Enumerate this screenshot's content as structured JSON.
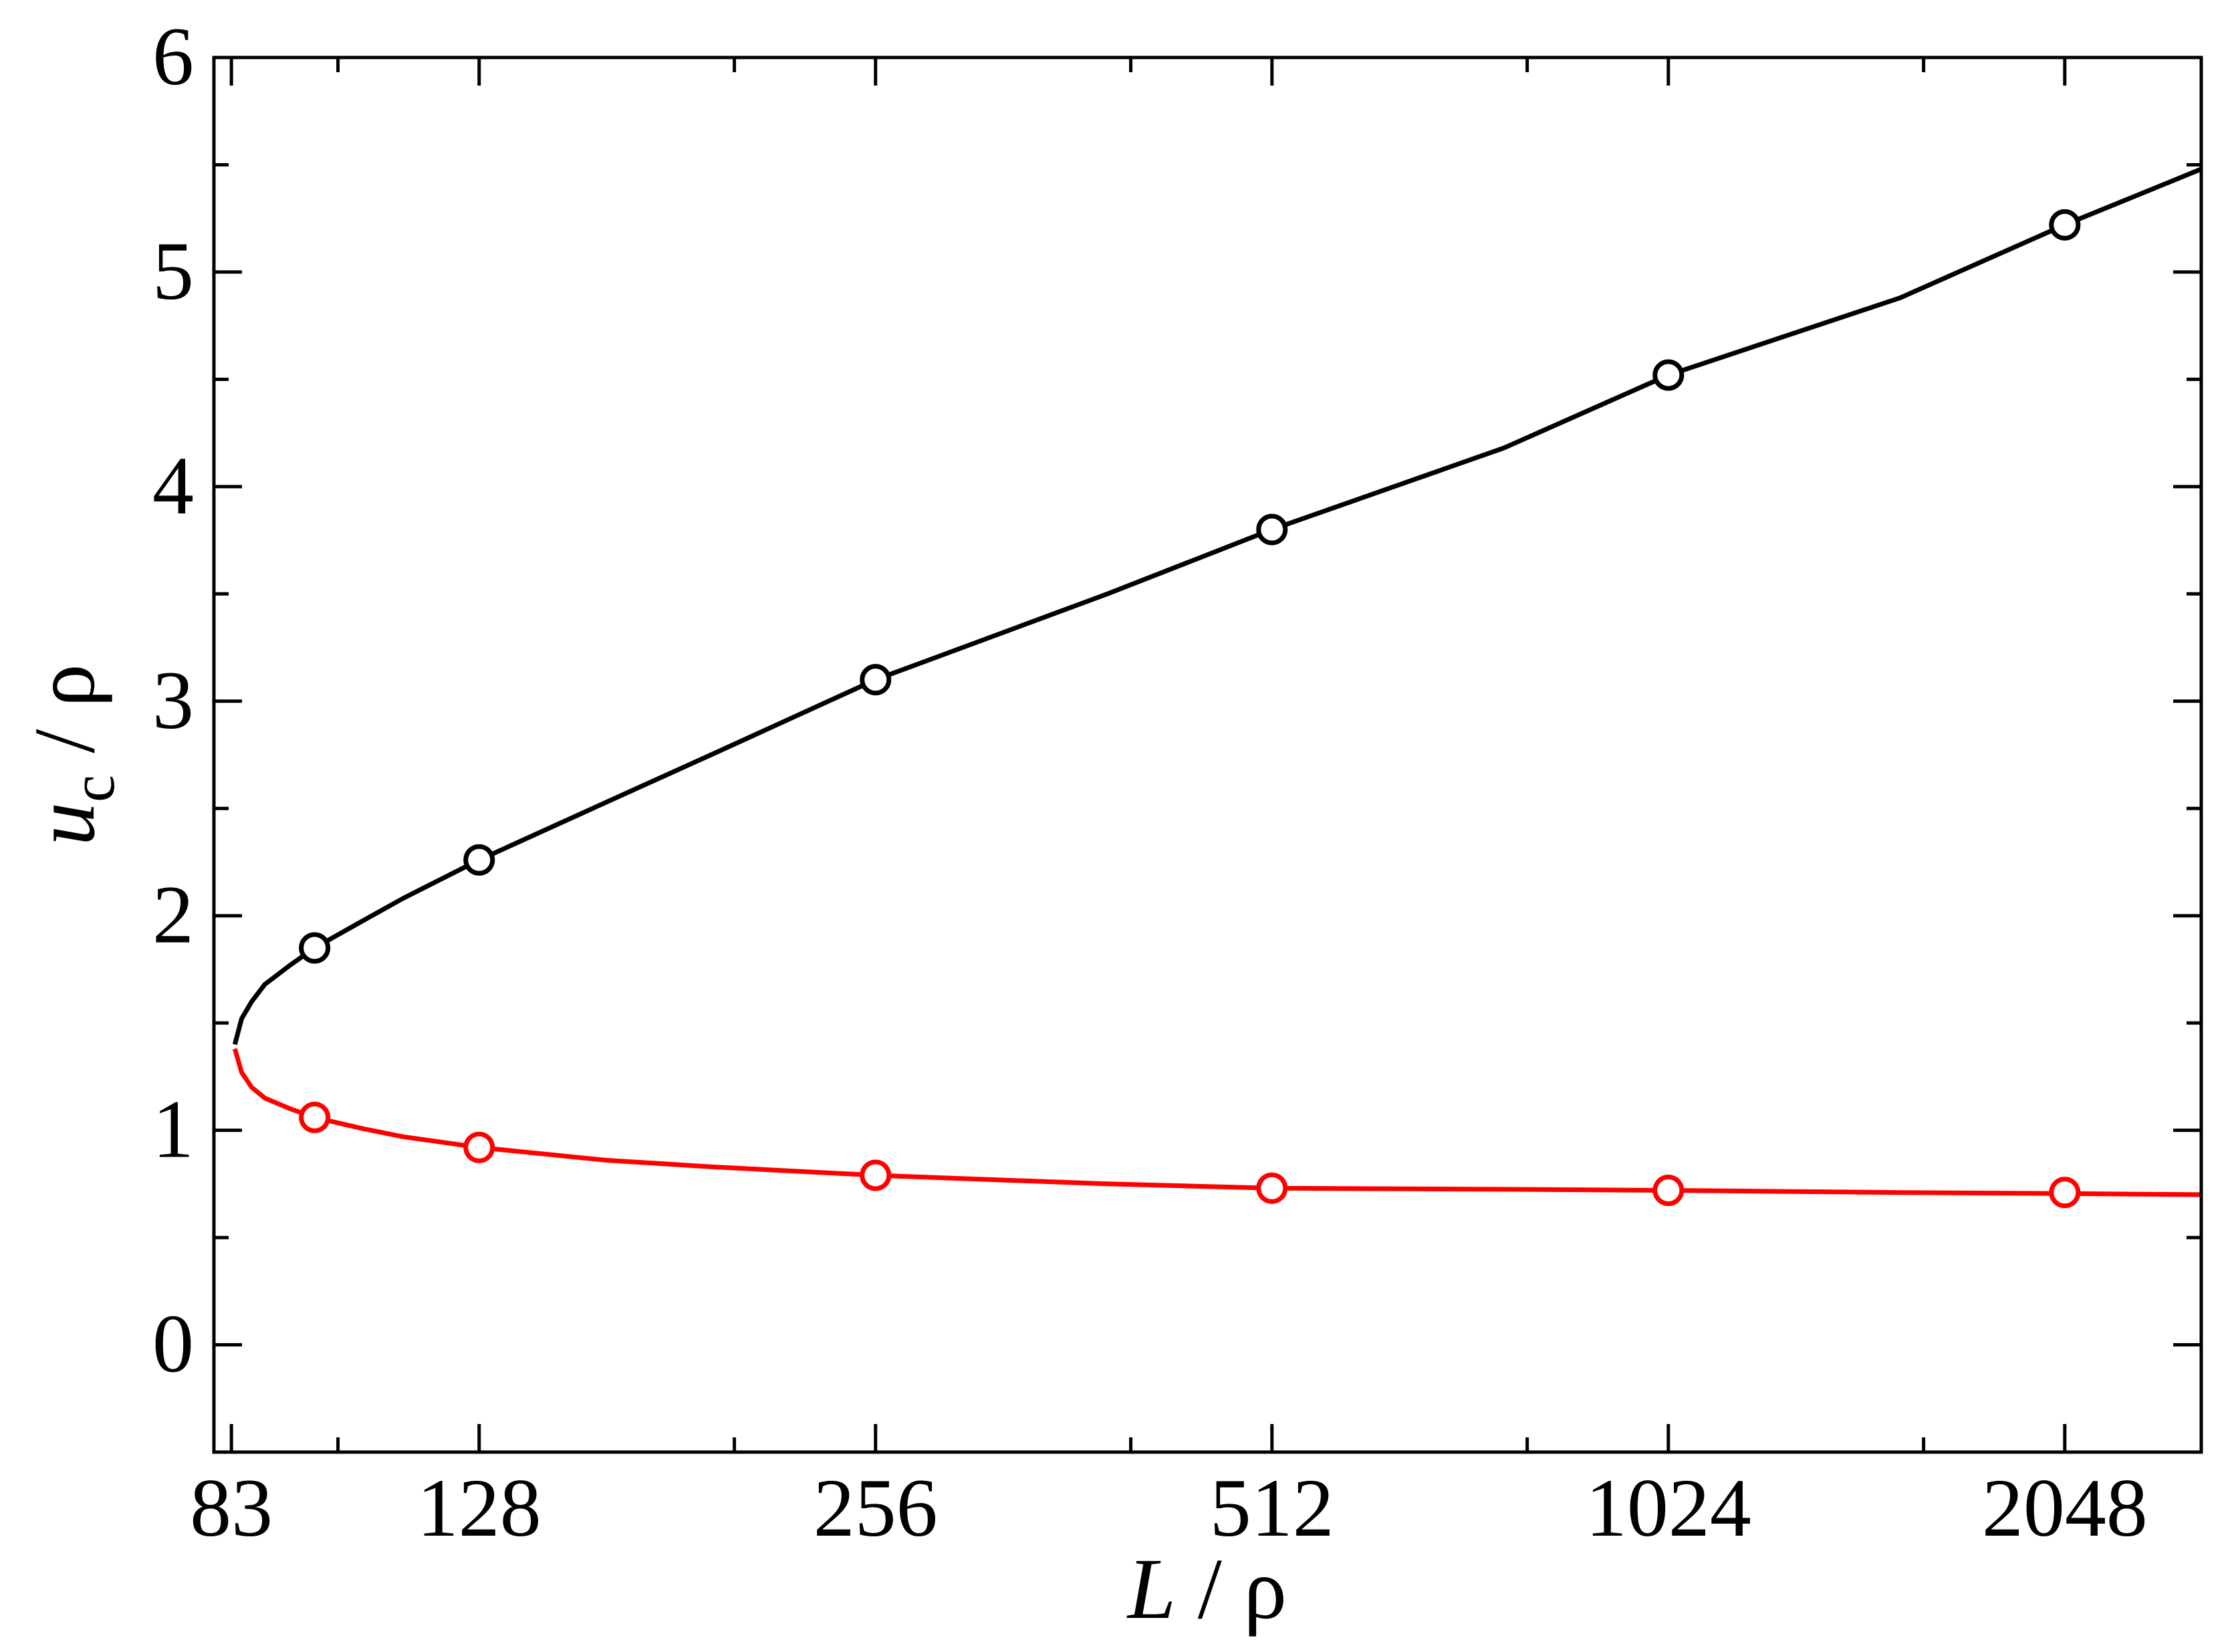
{
  "chart_data": {
    "type": "line",
    "x_scale": "log2",
    "xlim": [
      80.5,
      2600
    ],
    "ylim": [
      -0.5,
      6
    ],
    "x_major_ticks": [
      83,
      128,
      256,
      512,
      1024,
      2048
    ],
    "x_minor_ticks": [
      100,
      200,
      400,
      800,
      1600
    ],
    "y_major_ticks": [
      0,
      1,
      2,
      3,
      4,
      5,
      6
    ],
    "y_minor_ticks": [
      -0.5,
      0.5,
      1.5,
      2.5,
      3.5,
      4.5,
      5.5
    ],
    "xlabel": {
      "var": "L",
      "rest": " / ρ"
    },
    "ylabel": {
      "var": "u",
      "sub": "c",
      "rest": " / ρ"
    },
    "grid": false,
    "legend": "none",
    "series": [
      {
        "color": "#000000",
        "marker": "open-circle",
        "points": [
          {
            "x": 96,
            "y": 1.85
          },
          {
            "x": 128,
            "y": 2.26
          },
          {
            "x": 256,
            "y": 3.1
          },
          {
            "x": 512,
            "y": 3.8
          },
          {
            "x": 1024,
            "y": 4.52
          },
          {
            "x": 2048,
            "y": 5.22
          }
        ],
        "curve": [
          [
            83.5,
            1.4
          ],
          [
            84.5,
            1.52
          ],
          [
            86,
            1.6
          ],
          [
            88,
            1.68
          ],
          [
            92,
            1.77
          ],
          [
            96,
            1.85
          ],
          [
            104,
            1.97
          ],
          [
            112,
            2.08
          ],
          [
            128,
            2.26
          ],
          [
            160,
            2.53
          ],
          [
            192,
            2.75
          ],
          [
            256,
            3.1
          ],
          [
            384,
            3.5
          ],
          [
            512,
            3.8
          ],
          [
            768,
            4.18
          ],
          [
            1024,
            4.52
          ],
          [
            1536,
            4.88
          ],
          [
            2048,
            5.22
          ],
          [
            2600,
            5.48
          ]
        ]
      },
      {
        "color": "#ff0000",
        "marker": "open-circle",
        "points": [
          {
            "x": 96,
            "y": 1.06
          },
          {
            "x": 128,
            "y": 0.92
          },
          {
            "x": 256,
            "y": 0.79
          },
          {
            "x": 512,
            "y": 0.73
          },
          {
            "x": 1024,
            "y": 0.72
          },
          {
            "x": 2048,
            "y": 0.71
          }
        ],
        "curve": [
          [
            83.5,
            1.38
          ],
          [
            84.5,
            1.27
          ],
          [
            86,
            1.2
          ],
          [
            88,
            1.15
          ],
          [
            92,
            1.1
          ],
          [
            96,
            1.06
          ],
          [
            104,
            1.01
          ],
          [
            112,
            0.97
          ],
          [
            128,
            0.92
          ],
          [
            160,
            0.86
          ],
          [
            192,
            0.83
          ],
          [
            256,
            0.79
          ],
          [
            384,
            0.75
          ],
          [
            512,
            0.73
          ],
          [
            768,
            0.725
          ],
          [
            1024,
            0.72
          ],
          [
            1536,
            0.71
          ],
          [
            2048,
            0.705
          ],
          [
            2600,
            0.7
          ]
        ]
      }
    ]
  }
}
